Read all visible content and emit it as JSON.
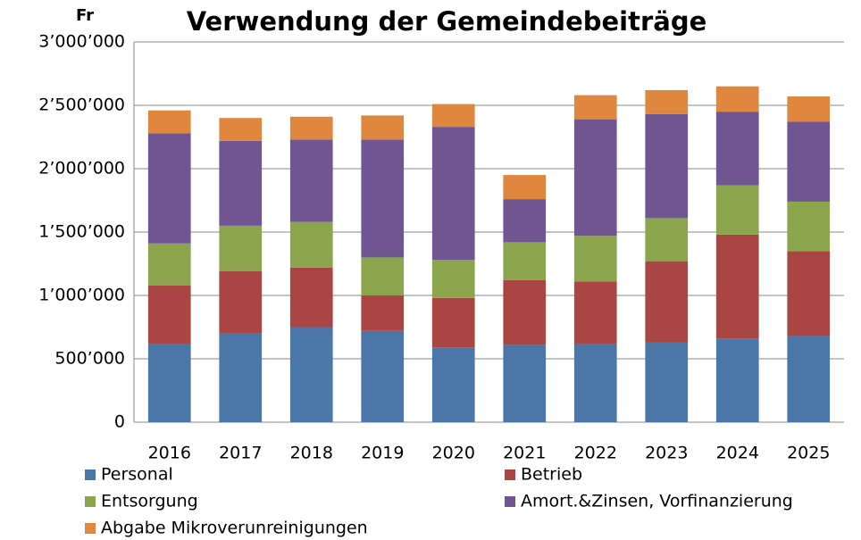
{
  "chart_data": {
    "type": "stacked_bar",
    "title": "Verwendung der Gemeindebeiträge",
    "y_label": "Fr",
    "categories": [
      "2016",
      "2017",
      "2018",
      "2019",
      "2020",
      "2021",
      "2022",
      "2023",
      "2024",
      "2025"
    ],
    "series": [
      {
        "name": "Personal",
        "color": "#4a76a8",
        "values": [
          620000,
          700000,
          750000,
          720000,
          590000,
          610000,
          620000,
          630000,
          660000,
          680000
        ]
      },
      {
        "name": "Betrieb",
        "color": "#a94543",
        "values": [
          460000,
          490000,
          470000,
          280000,
          390000,
          510000,
          490000,
          640000,
          820000,
          670000
        ]
      },
      {
        "name": "Entsorgung",
        "color": "#8aa54b",
        "values": [
          330000,
          360000,
          360000,
          300000,
          300000,
          300000,
          360000,
          340000,
          390000,
          390000
        ]
      },
      {
        "name": "Amort.&Zinsen, Vorfinanzierung",
        "color": "#6f5592",
        "values": [
          870000,
          670000,
          650000,
          930000,
          1050000,
          340000,
          920000,
          820000,
          580000,
          630000
        ]
      },
      {
        "name": "Abgabe Mikroverunreinigungen",
        "color": "#e0873f",
        "values": [
          180000,
          180000,
          180000,
          190000,
          180000,
          190000,
          190000,
          190000,
          200000,
          200000
        ]
      }
    ],
    "ylim": [
      0,
      3000000
    ],
    "yticks": [
      0,
      {
        "value": 500000,
        "label": "500’000"
      },
      {
        "value": 1000000,
        "label": "1’000’000"
      },
      {
        "value": 1500000,
        "label": "1’500’000"
      },
      {
        "value": 2000000,
        "label": "2’000’000"
      },
      {
        "value": 2500000,
        "label": "2’500’000"
      },
      {
        "value": 3000000,
        "label": "3’000’000"
      }
    ],
    "grid": true
  }
}
